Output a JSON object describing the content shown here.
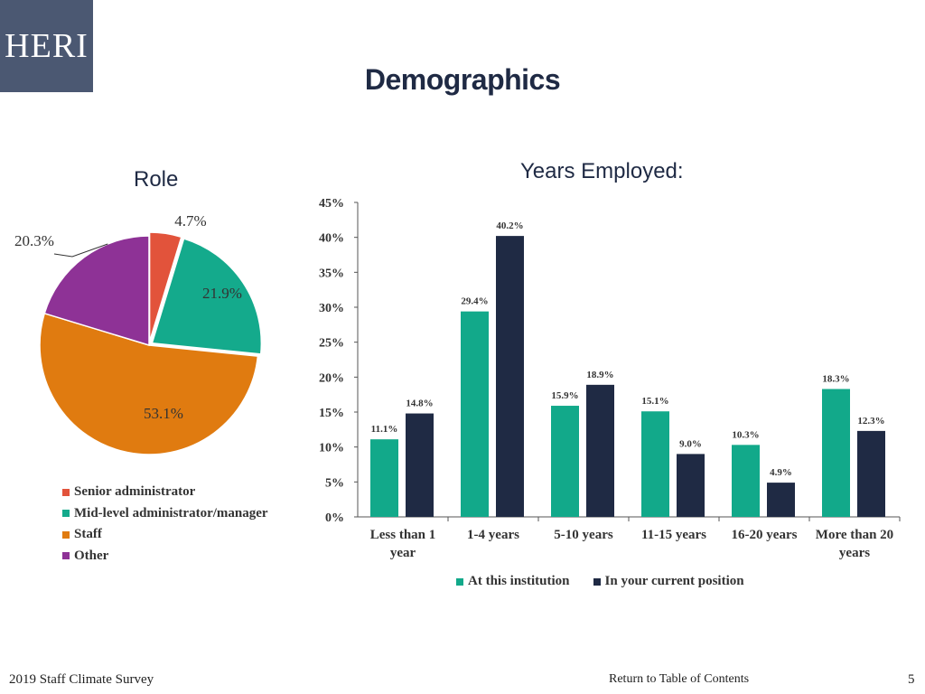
{
  "logo_text": "HERI",
  "page_title": "Demographics",
  "footer": {
    "survey": "2019 Staff Climate Survey",
    "toc_link": "Return to Table of Contents",
    "page_number": "5"
  },
  "chart_data": [
    {
      "type": "pie",
      "title": "Role",
      "labels": [
        "Senior administrator",
        "Mid-level administrator/manager",
        "Staff",
        "Other"
      ],
      "values": [
        4.7,
        21.9,
        53.1,
        20.3
      ],
      "value_labels": [
        "4.7%",
        "21.9%",
        "53.1%",
        "20.3%"
      ],
      "colors": [
        "#e2533b",
        "#14aa8c",
        "#e07b10",
        "#8e3296"
      ],
      "legend": "bottom-left"
    },
    {
      "type": "bar",
      "title": "Years Employed:",
      "categories": [
        [
          "Less than 1",
          "year"
        ],
        [
          "1-4 years"
        ],
        [
          "5-10 years"
        ],
        [
          "11-15 years"
        ],
        [
          "16-20 years"
        ],
        [
          "More than 20",
          "years"
        ]
      ],
      "series": [
        {
          "name": "At this institution",
          "values": [
            11.1,
            29.4,
            15.9,
            15.1,
            10.3,
            18.3
          ],
          "labels": [
            "11.1%",
            "29.4%",
            "15.9%",
            "15.1%",
            "10.3%",
            "18.3%"
          ],
          "color": "#12a98a"
        },
        {
          "name": "In your current position",
          "values": [
            14.8,
            40.2,
            18.9,
            9.0,
            4.9,
            12.3
          ],
          "labels": [
            "14.8%",
            "40.2%",
            "18.9%",
            "9.0%",
            "4.9%",
            "12.3%"
          ],
          "color": "#1f2a44"
        }
      ],
      "ylim": [
        0,
        45
      ],
      "yticks": [
        "0%",
        "5%",
        "10%",
        "15%",
        "20%",
        "25%",
        "30%",
        "35%",
        "40%",
        "45%"
      ],
      "legend": "bottom"
    }
  ]
}
